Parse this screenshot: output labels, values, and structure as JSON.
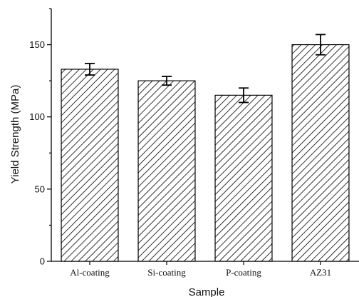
{
  "chart_data": {
    "type": "bar",
    "title": "",
    "xlabel": "Sample",
    "ylabel": "Yield Strength (MPa)",
    "categories": [
      "Al-coating",
      "Si-coating",
      "P-coating",
      "AZ31"
    ],
    "values": [
      133,
      125,
      115,
      150
    ],
    "errors": [
      4,
      3,
      5,
      7
    ],
    "ylim": [
      0,
      175
    ],
    "yticks": [
      0,
      50,
      100,
      150
    ],
    "bar_fill": "diagonal-hatch",
    "bar_edge_color": "#000000",
    "grid": false,
    "legend": "none"
  }
}
